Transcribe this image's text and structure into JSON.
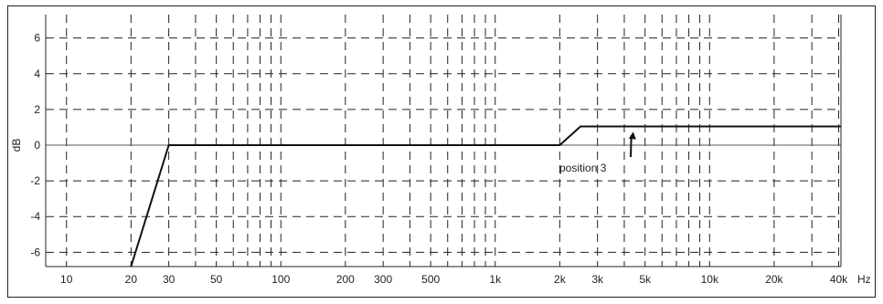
{
  "chart_data": {
    "type": "line",
    "title": "",
    "xlabel": "",
    "x_unit": "Hz",
    "ylabel": "dB",
    "x_scale": "log",
    "xlim": [
      8,
      41000
    ],
    "ylim": [
      -6.8,
      6.8
    ],
    "grid": true,
    "x_ticks": [
      {
        "value": 10,
        "label": "10"
      },
      {
        "value": 20,
        "label": "20"
      },
      {
        "value": 30,
        "label": "30"
      },
      {
        "value": 50,
        "label": "50"
      },
      {
        "value": 100,
        "label": "100"
      },
      {
        "value": 200,
        "label": "200"
      },
      {
        "value": 300,
        "label": "300"
      },
      {
        "value": 500,
        "label": "500"
      },
      {
        "value": 1000,
        "label": "1k"
      },
      {
        "value": 2000,
        "label": "2k"
      },
      {
        "value": 3000,
        "label": "3k"
      },
      {
        "value": 5000,
        "label": "5k"
      },
      {
        "value": 10000,
        "label": "10k"
      },
      {
        "value": 20000,
        "label": "20k"
      },
      {
        "value": 40000,
        "label": "40k"
      }
    ],
    "y_ticks": [
      {
        "value": 6,
        "label": "6"
      },
      {
        "value": 4,
        "label": "4"
      },
      {
        "value": 2,
        "label": "2"
      },
      {
        "value": 0,
        "label": "0"
      },
      {
        "value": -2,
        "label": "-2"
      },
      {
        "value": -4,
        "label": "-4"
      },
      {
        "value": -6,
        "label": "-6"
      }
    ],
    "series": [
      {
        "x": [
          20,
          30,
          2000,
          2500,
          41000
        ],
        "y": [
          -6.8,
          0,
          0,
          1.05,
          1.05
        ]
      }
    ],
    "annotations": [
      {
        "text": "position 3",
        "target_x": 4400,
        "target_y": 0.75
      }
    ]
  }
}
